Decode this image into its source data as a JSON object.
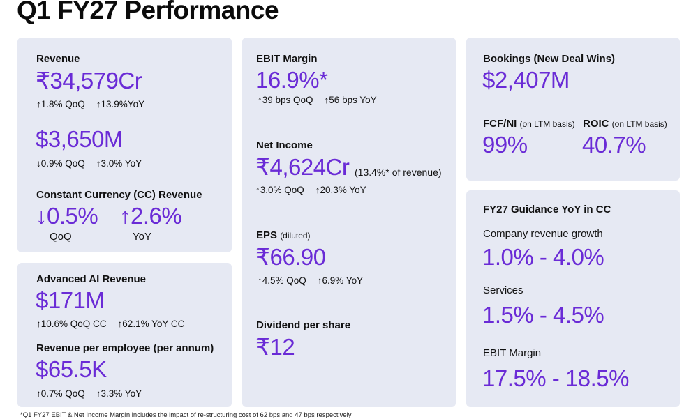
{
  "title": "Q1 FY27 Performance",
  "accent_color": "#6a2bd6",
  "card_color": "#e6e9f3",
  "revenue": {
    "label": "Revenue",
    "inr_value": "₹34,579Cr",
    "inr_qoq": "↑1.8% QoQ",
    "inr_yoy": "↑13.9%YoY",
    "usd_value": "$3,650M",
    "usd_qoq": "↓0.9% QoQ",
    "usd_yoy": "↑3.0% YoY",
    "cc_label": "Constant Currency (CC) Revenue",
    "cc_qoq_value": "↓0.5%",
    "cc_qoq_label": "QoQ",
    "cc_yoy_value": "↑2.6%",
    "cc_yoy_label": "YoY"
  },
  "ai": {
    "label": "Advanced AI Revenue",
    "value": "$171M",
    "qoq": "↑10.6% QoQ CC",
    "yoy": "↑62.1% YoY CC",
    "rpe_label": "Revenue per employee (per annum)",
    "rpe_value": "$65.5K",
    "rpe_qoq": "↑0.7% QoQ",
    "rpe_yoy": "↑3.3% YoY"
  },
  "middle": {
    "ebit_label": "EBIT Margin",
    "ebit_value": "16.9%*",
    "ebit_qoq": "↑39 bps QoQ",
    "ebit_yoy": "↑56 bps YoY",
    "ni_label": "Net Income",
    "ni_value": "₹4,624Cr",
    "ni_note": "(13.4%* of revenue)",
    "ni_qoq": "↑3.0% QoQ",
    "ni_yoy": "↑20.3% YoY",
    "eps_label": "EPS",
    "eps_sub": "(diluted)",
    "eps_value": "₹66.90",
    "eps_qoq": "↑4.5% QoQ",
    "eps_yoy": "↑6.9% YoY",
    "div_label": "Dividend per share",
    "div_value": "₹12"
  },
  "bookings": {
    "label": "Bookings (New Deal Wins)",
    "value": "$2,407M",
    "fcf_label": "FCF/NI",
    "fcf_sub": "(on LTM basis)",
    "fcf_value": "99%",
    "roic_label": "ROIC",
    "roic_sub": "(on LTM basis)",
    "roic_value": "40.7%"
  },
  "guidance": {
    "label": "FY27 Guidance YoY in CC",
    "company_label": "Company revenue growth",
    "company_value": "1.0% - 4.0%",
    "services_label": "Services",
    "services_value": "1.5% - 4.5%",
    "ebit_label": "EBIT Margin",
    "ebit_value": "17.5% - 18.5%"
  },
  "footnote": "*Q1 FY27 EBIT & Net Income Margin includes the impact of re-structuring cost of 62 bps and 47 bps respectively"
}
